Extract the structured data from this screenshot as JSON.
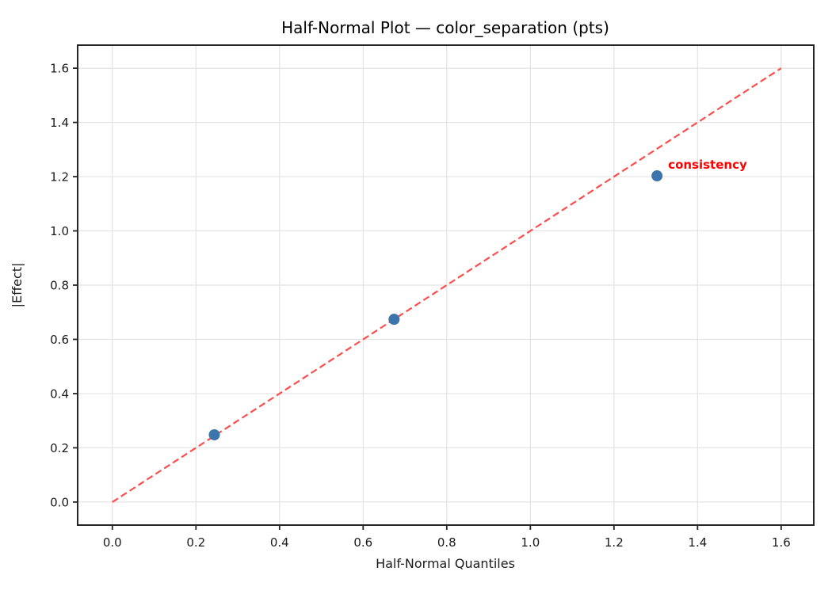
{
  "window": {
    "title": "Half-Normal Plot — color_separation (pts)"
  },
  "chart_data": {
    "type": "scatter",
    "title": "Half-Normal Plot — color_separation (pts)",
    "xlabel": "Half-Normal Quantiles",
    "ylabel": "|Effect|",
    "points": [
      {
        "x": 0.244,
        "y": 0.248,
        "label": ""
      },
      {
        "x": 0.674,
        "y": 0.674,
        "label": ""
      },
      {
        "x": 1.303,
        "y": 1.203,
        "label": "consistency"
      }
    ],
    "reference_line": {
      "style": "dashed",
      "x": [
        0.0,
        1.6
      ],
      "y": [
        0.0,
        1.6
      ],
      "color": "#ff4d4d"
    },
    "xticks": [
      0.0,
      0.2,
      0.4,
      0.6,
      0.8,
      1.0,
      1.2,
      1.4,
      1.6
    ],
    "yticks": [
      0.0,
      0.2,
      0.4,
      0.6,
      0.8,
      1.0,
      1.2,
      1.4,
      1.6
    ],
    "xlim": [
      -0.083,
      1.678
    ],
    "ylim": [
      -0.085,
      1.685
    ],
    "grid": true,
    "legend": "none",
    "colors": {
      "point": "#3c74ac",
      "annotation": "#ff0000",
      "grid": "#e3e3e3",
      "spine": "#262626",
      "tick_text": "#1a1a1a"
    }
  }
}
